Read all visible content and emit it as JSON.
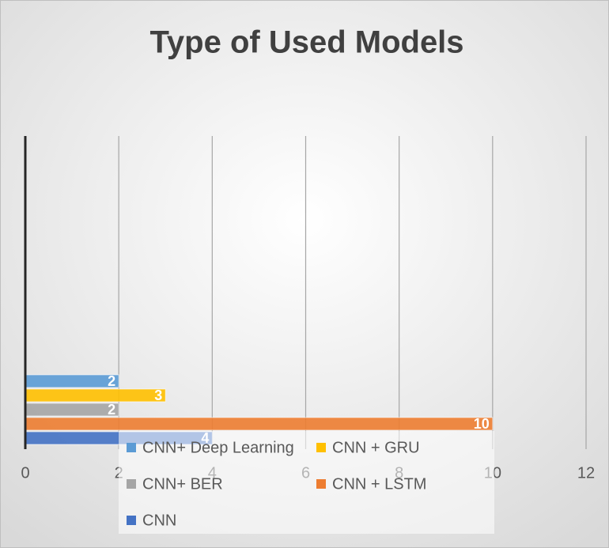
{
  "chart_data": {
    "type": "bar",
    "orientation": "horizontal",
    "title": "Type of Used Models",
    "series": [
      {
        "name": "CNN+ Deep Learning",
        "color": "#5b9bd5",
        "values": [
          2
        ]
      },
      {
        "name": "CNN + GRU",
        "color": "#ffc000",
        "values": [
          3
        ]
      },
      {
        "name": "CNN+ BER",
        "color": "#a5a5a5",
        "values": [
          2
        ]
      },
      {
        "name": "CNN + LSTM",
        "color": "#ed7d31",
        "values": [
          10
        ]
      },
      {
        "name": "CNN",
        "color": "#4472c4",
        "values": [
          4
        ]
      }
    ],
    "xlim": [
      0,
      12
    ],
    "xticks": [
      0,
      2,
      4,
      6,
      8,
      10,
      12
    ],
    "grid": true,
    "legend": "bottom"
  }
}
